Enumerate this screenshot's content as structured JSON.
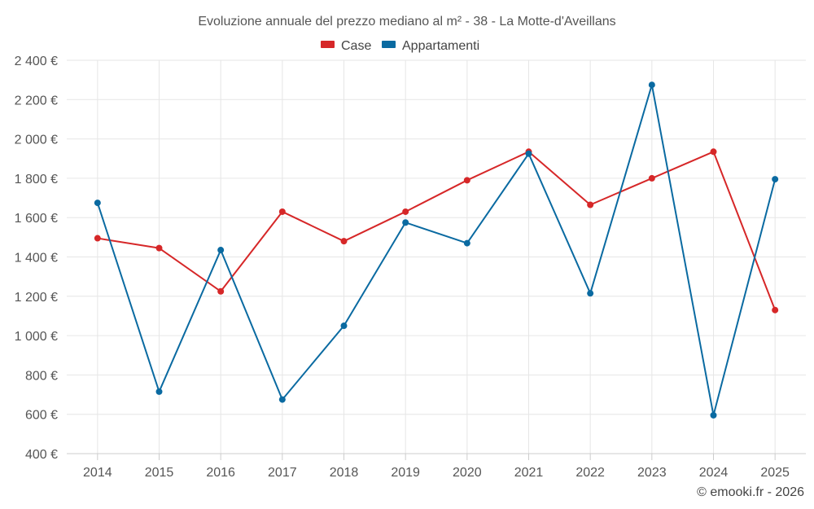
{
  "chart_data": {
    "type": "line",
    "title": "Evoluzione annuale del prezzo mediano al m² - 38 - La Motte-d'Aveillans",
    "credit": "© emooki.fr - 2026",
    "xlabel": "",
    "ylabel": "",
    "categories": [
      "2014",
      "2015",
      "2016",
      "2017",
      "2018",
      "2019",
      "2020",
      "2021",
      "2022",
      "2023",
      "2024",
      "2025"
    ],
    "ylim": [
      400,
      2400
    ],
    "yticks": [
      400,
      600,
      800,
      1000,
      1200,
      1400,
      1600,
      1800,
      2000,
      2200,
      2400
    ],
    "ytick_labels": [
      "400 €",
      "600 €",
      "800 €",
      "1 000 €",
      "1 200 €",
      "1 400 €",
      "1 600 €",
      "1 800 €",
      "2 000 €",
      "2 200 €",
      "2 400 €"
    ],
    "grid": true,
    "legend_position": "top-center",
    "series": [
      {
        "name": "Case",
        "color": "#d62728",
        "values": [
          1495,
          1445,
          1225,
          1630,
          1480,
          1630,
          1790,
          1935,
          1665,
          1800,
          1935,
          1130
        ]
      },
      {
        "name": "Appartamenti",
        "color": "#0a6aa1",
        "values": [
          1675,
          715,
          1435,
          675,
          1050,
          1575,
          1470,
          1925,
          1215,
          2275,
          595,
          1795
        ]
      }
    ]
  }
}
